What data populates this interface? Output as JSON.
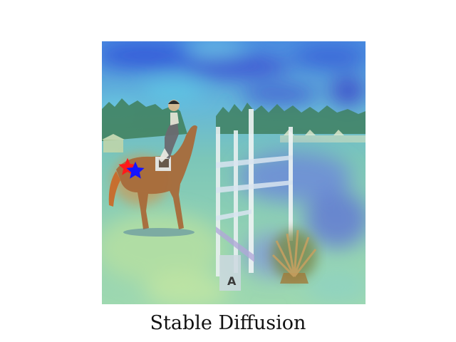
{
  "caption": "Stable Diffusion",
  "colors": {
    "marker_red": "#ff1a1a",
    "marker_blue": "#1414ff",
    "background": "#ffffff"
  },
  "image": {
    "scene": "show-jumping arena with horse and rider beside a fence",
    "overlay": "jet colormap heatmap"
  },
  "markers": [
    {
      "name": "red-star",
      "shape": "star",
      "color": "#ff1a1a"
    },
    {
      "name": "blue-star",
      "shape": "star",
      "color": "#1414ff"
    }
  ]
}
